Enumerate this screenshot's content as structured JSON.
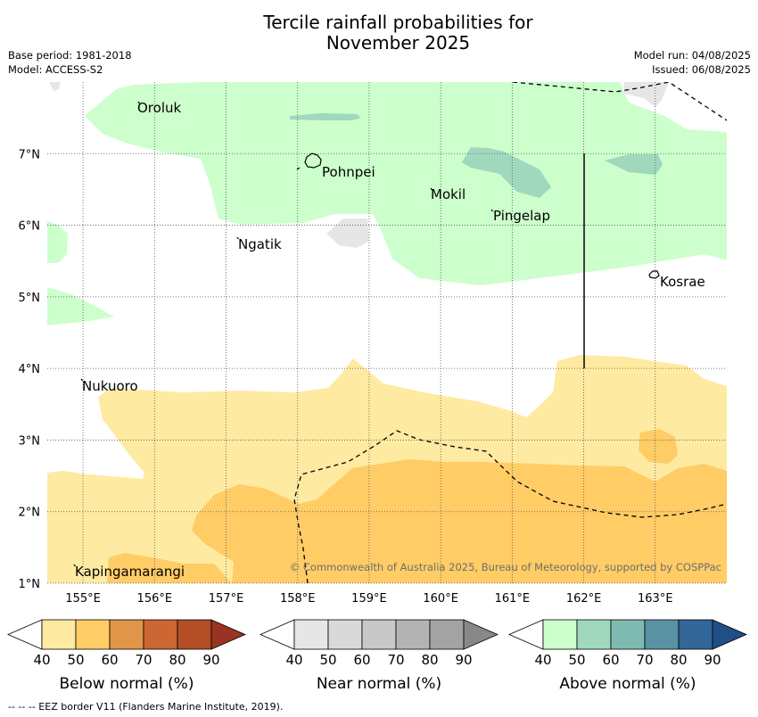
{
  "title_line1": "Tercile rainfall probabilities for",
  "title_line2": "November 2025",
  "meta_left": [
    "Base period: 1981-2018",
    "Model: ACCESS-S2"
  ],
  "meta_right": [
    "Model run: 04/08/2025",
    "Issued: 06/08/2025"
  ],
  "map": {
    "lon_range": [
      154.5,
      164.0
    ],
    "lat_range": [
      1.0,
      8.0
    ],
    "lon_ticks": [
      "155°E",
      "156°E",
      "157°E",
      "158°E",
      "159°E",
      "160°E",
      "161°E",
      "162°E",
      "163°E"
    ],
    "lat_ticks": [
      "1°N",
      "2°N",
      "3°N",
      "4°N",
      "5°N",
      "6°N",
      "7°N"
    ],
    "gridlines": "dotted",
    "places": [
      "Oroluk",
      "Pohnpei",
      "Mokil",
      "Pingelap",
      "Ngatik",
      "Kosrae",
      "Nukuoro",
      "Kapingamarangi"
    ],
    "copyright": "© Commonwealth of Australia 2025, Bureau of Meteorology, supported by COSPPac",
    "eez_border_style": "dashed"
  },
  "colorbars": [
    {
      "label": "Below normal (%)",
      "ticks": [
        "40",
        "50",
        "60",
        "70",
        "80",
        "90"
      ],
      "colors": [
        "#ffffff",
        "#ffeaa1",
        "#ffcc66",
        "#e09548",
        "#cc6633",
        "#b34d26",
        "#993322"
      ]
    },
    {
      "label": "Near normal (%)",
      "ticks": [
        "40",
        "50",
        "60",
        "70",
        "80",
        "90"
      ],
      "colors": [
        "#ffffff",
        "#e6e6e6",
        "#d9d9d9",
        "#c8c8c8",
        "#b3b3b3",
        "#a3a3a3",
        "#888888"
      ]
    },
    {
      "label": "Above normal (%)",
      "ticks": [
        "40",
        "50",
        "60",
        "70",
        "80",
        "90"
      ],
      "colors": [
        "#ffffff",
        "#ccffcc",
        "#a0d8bd",
        "#7fbab1",
        "#5a92a3",
        "#336699",
        "#1f4f85"
      ]
    }
  ],
  "footnote": "--  --  -- EEZ border V11 (Flanders Marine Institute, 2019)."
}
